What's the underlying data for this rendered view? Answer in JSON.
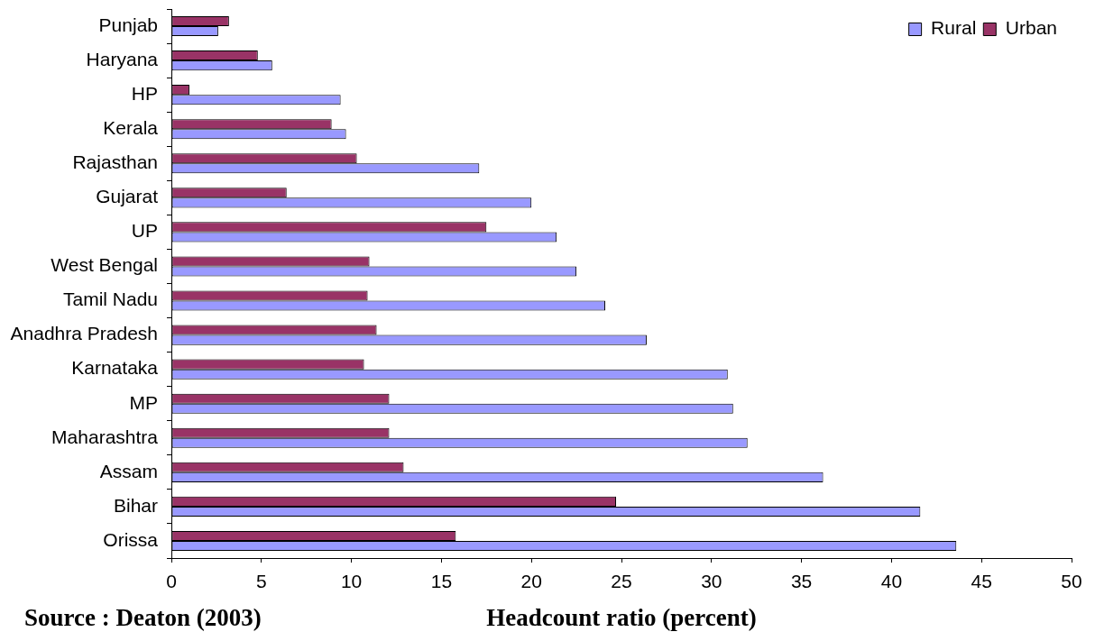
{
  "chart_data": {
    "type": "bar",
    "orientation": "horizontal",
    "categories": [
      "Punjab",
      "Haryana",
      "HP",
      "Kerala",
      "Rajasthan",
      "Gujarat",
      "UP",
      "West Bengal",
      "Tamil Nadu",
      "Anadhra Pradesh",
      "Karnataka",
      "MP",
      "Maharashtra",
      "Assam",
      "Bihar",
      "Orissa"
    ],
    "series": [
      {
        "name": "Rural",
        "color": "#9999ff",
        "values": [
          2.6,
          5.6,
          9.4,
          9.7,
          17.1,
          20.0,
          21.4,
          22.5,
          24.1,
          26.4,
          30.9,
          31.2,
          32.0,
          36.2,
          41.6,
          43.6
        ]
      },
      {
        "name": "Urban",
        "color": "#993366",
        "values": [
          3.2,
          4.8,
          1.0,
          8.9,
          10.3,
          6.4,
          17.5,
          11.0,
          10.9,
          11.4,
          10.7,
          12.1,
          12.1,
          12.9,
          24.7,
          15.8
        ]
      }
    ],
    "xlim": [
      0,
      50
    ],
    "xticks": [
      0,
      5,
      10,
      15,
      20,
      25,
      30,
      35,
      40,
      45,
      50
    ],
    "xlabel": "Headcount ratio (percent)",
    "legend": "top right",
    "annotations": [
      "Source : Deaton (2003)"
    ]
  }
}
